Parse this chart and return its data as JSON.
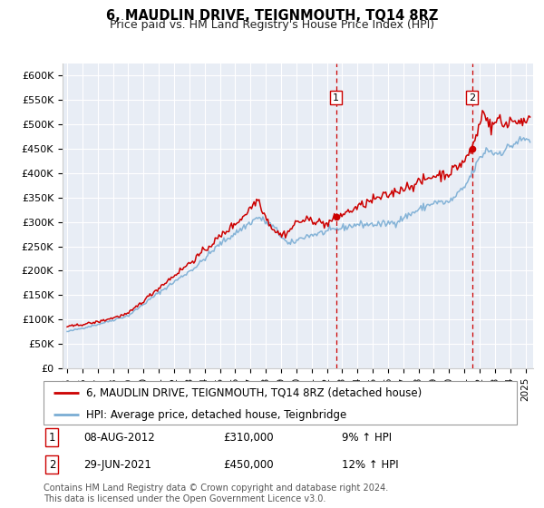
{
  "title": "6, MAUDLIN DRIVE, TEIGNMOUTH, TQ14 8RZ",
  "subtitle": "Price paid vs. HM Land Registry's House Price Index (HPI)",
  "ylabel_ticks": [
    "£0",
    "£50K",
    "£100K",
    "£150K",
    "£200K",
    "£250K",
    "£300K",
    "£350K",
    "£400K",
    "£450K",
    "£500K",
    "£550K",
    "£600K"
  ],
  "ytick_values": [
    0,
    50000,
    100000,
    150000,
    200000,
    250000,
    300000,
    350000,
    400000,
    450000,
    500000,
    550000,
    600000
  ],
  "ylim": [
    0,
    625000
  ],
  "xlim_start": 1994.7,
  "xlim_end": 2025.5,
  "fig_bg_color": "#ffffff",
  "plot_bg_color": "#e8edf5",
  "grid_color": "#ffffff",
  "red_line_color": "#cc0000",
  "blue_line_color": "#7aadd4",
  "vline_color": "#cc0000",
  "marker1_date": 2012.6,
  "marker2_date": 2021.5,
  "marker1_value": 310000,
  "marker2_value": 450000,
  "legend_label1": "6, MAUDLIN DRIVE, TEIGNMOUTH, TQ14 8RZ (detached house)",
  "legend_label2": "HPI: Average price, detached house, Teignbridge",
  "annotation1_num": "1",
  "annotation1_date": "08-AUG-2012",
  "annotation1_price": "£310,000",
  "annotation1_hpi": "9% ↑ HPI",
  "annotation2_num": "2",
  "annotation2_date": "29-JUN-2021",
  "annotation2_price": "£450,000",
  "annotation2_hpi": "12% ↑ HPI",
  "footnote": "Contains HM Land Registry data © Crown copyright and database right 2024.\nThis data is licensed under the Open Government Licence v3.0.",
  "title_fontsize": 10.5,
  "subtitle_fontsize": 9,
  "tick_fontsize": 8,
  "legend_fontsize": 8.5,
  "annotation_fontsize": 8.5,
  "footnote_fontsize": 7
}
